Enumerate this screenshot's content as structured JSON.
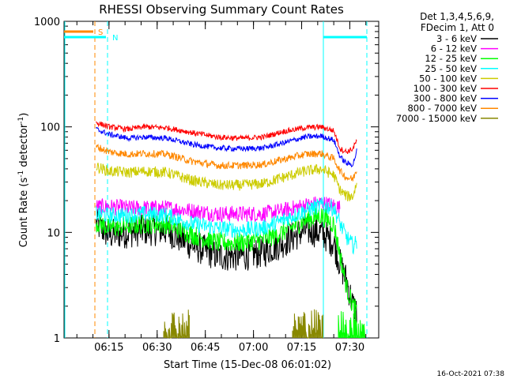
{
  "chart_data": {
    "type": "line",
    "title": "RHESSI Observing Summary Count Rates",
    "xlabel": "Start Time (15-Dec-08 06:01:02)",
    "ylabel": "Count Rate (s",
    "ylabel_sup1": "-1",
    "ylabel_mid": " detector",
    "ylabel_sup2": "-1",
    "ylabel_end": ")",
    "yscale": "log",
    "ylim": [
      1,
      1000
    ],
    "xlim_minutes": [
      6.0,
      7.5
    ],
    "xlim_end_minutes": 98.0,
    "x_ticks": [
      {
        "minute": 14,
        "label": "06:15"
      },
      {
        "minute": 29,
        "label": "06:30"
      },
      {
        "minute": 44,
        "label": "06:45"
      },
      {
        "minute": 59,
        "label": "07:00"
      },
      {
        "minute": 74,
        "label": "07:15"
      },
      {
        "minute": 89,
        "label": "07:30"
      }
    ],
    "y_ticks": [
      {
        "value": 1,
        "label": "1"
      },
      {
        "value": 10,
        "label": "10"
      },
      {
        "value": 100,
        "label": "100"
      },
      {
        "value": 1000,
        "label": "1000"
      }
    ],
    "legend_header": [
      "Det 1,3,4,5,6,9,",
      "FDecim 1, Att 0"
    ],
    "legend_position": "right",
    "series": [
      {
        "name": "3 - 6 keV",
        "color": "#000000",
        "x": [
          10,
          14,
          20,
          25,
          32,
          40,
          48,
          55,
          62,
          68,
          75,
          80,
          84,
          86,
          88,
          90,
          91.2
        ],
        "y": [
          12,
          9.5,
          10,
          10.5,
          10.5,
          7.5,
          6,
          6,
          6.5,
          8,
          10.5,
          10,
          8,
          5,
          3.5,
          2,
          1.8
        ]
      },
      {
        "name": "6 - 12 keV",
        "color": "#ff00ff",
        "x": [
          10,
          14,
          20,
          25,
          32,
          40,
          48,
          55,
          62,
          68,
          75,
          80,
          84,
          86
        ],
        "y": [
          17.5,
          17.5,
          17,
          17,
          17,
          16,
          15,
          15,
          15,
          16,
          18,
          19,
          18,
          17
        ]
      },
      {
        "name": "12 - 25 keV",
        "color": "#00ff00",
        "x": [
          10,
          14,
          20,
          25,
          32,
          40,
          48,
          55,
          62,
          68,
          75,
          80,
          84,
          86,
          88,
          90,
          91.2
        ],
        "y": [
          12.5,
          11,
          11.5,
          12,
          12,
          9.5,
          8,
          8,
          8.5,
          10,
          13,
          14.5,
          12,
          6,
          3,
          2,
          1.8
        ]
      },
      {
        "name": "25 - 50 keV",
        "color": "#00ffff",
        "x": [
          10,
          14,
          20,
          25,
          32,
          40,
          48,
          55,
          62,
          68,
          75,
          80,
          84,
          86,
          88,
          90,
          91.2
        ],
        "y": [
          15,
          14.5,
          14.5,
          15,
          14.5,
          12,
          11,
          10.5,
          11,
          13,
          16,
          18,
          17,
          12,
          9,
          7.5,
          8
        ]
      },
      {
        "name": "50 - 100 keV",
        "color": "#cccc00",
        "x": [
          10,
          14,
          20,
          25,
          32,
          40,
          48,
          55,
          62,
          68,
          75,
          80,
          84,
          86,
          88,
          90,
          91.2
        ],
        "y": [
          42,
          38,
          37,
          38,
          37,
          31,
          28,
          28,
          29,
          33,
          38,
          40,
          35,
          25,
          22,
          22,
          30
        ]
      },
      {
        "name": "100 - 300 keV",
        "color": "#ff0000",
        "x": [
          10,
          14,
          20,
          25,
          32,
          40,
          48,
          55,
          62,
          68,
          75,
          80,
          84,
          86,
          88,
          90,
          91.2
        ],
        "y": [
          110,
          100,
          95,
          100,
          98,
          88,
          80,
          78,
          80,
          90,
          98,
          100,
          92,
          62,
          58,
          62,
          75
        ]
      },
      {
        "name": "300 - 800 keV",
        "color": "#0000ff",
        "x": [
          10,
          14,
          20,
          25,
          32,
          40,
          48,
          55,
          62,
          68,
          75,
          80,
          84,
          86,
          88,
          90,
          91.2
        ],
        "y": [
          95,
          85,
          78,
          80,
          78,
          68,
          63,
          62,
          63,
          70,
          80,
          82,
          75,
          52,
          45,
          44,
          60
        ]
      },
      {
        "name": "800 - 7000 keV",
        "color": "#ff8800",
        "x": [
          10,
          14,
          20,
          25,
          32,
          40,
          48,
          55,
          62,
          68,
          75,
          80,
          84,
          86,
          88,
          90,
          91.2
        ],
        "y": [
          65,
          58,
          55,
          56,
          55,
          47,
          43,
          43,
          44,
          49,
          55,
          56,
          50,
          38,
          33,
          32,
          40
        ]
      },
      {
        "name": "7000 - 15000 keV",
        "color": "#888800",
        "x": [
          20,
          21,
          22,
          23,
          24,
          25,
          26,
          27,
          28
        ],
        "y": [
          2,
          1,
          2,
          1,
          2,
          1,
          2,
          1,
          2
        ]
      }
    ],
    "flag_bars": [
      {
        "label": "S",
        "color": "#ff8800",
        "start_minute": 0,
        "end_minute": 10
      },
      {
        "label": "N",
        "color": "#00ffff",
        "start_minute": 0,
        "end_minute": 13
      }
    ],
    "footer_timestamp": "16-Oct-2021 07:38"
  }
}
